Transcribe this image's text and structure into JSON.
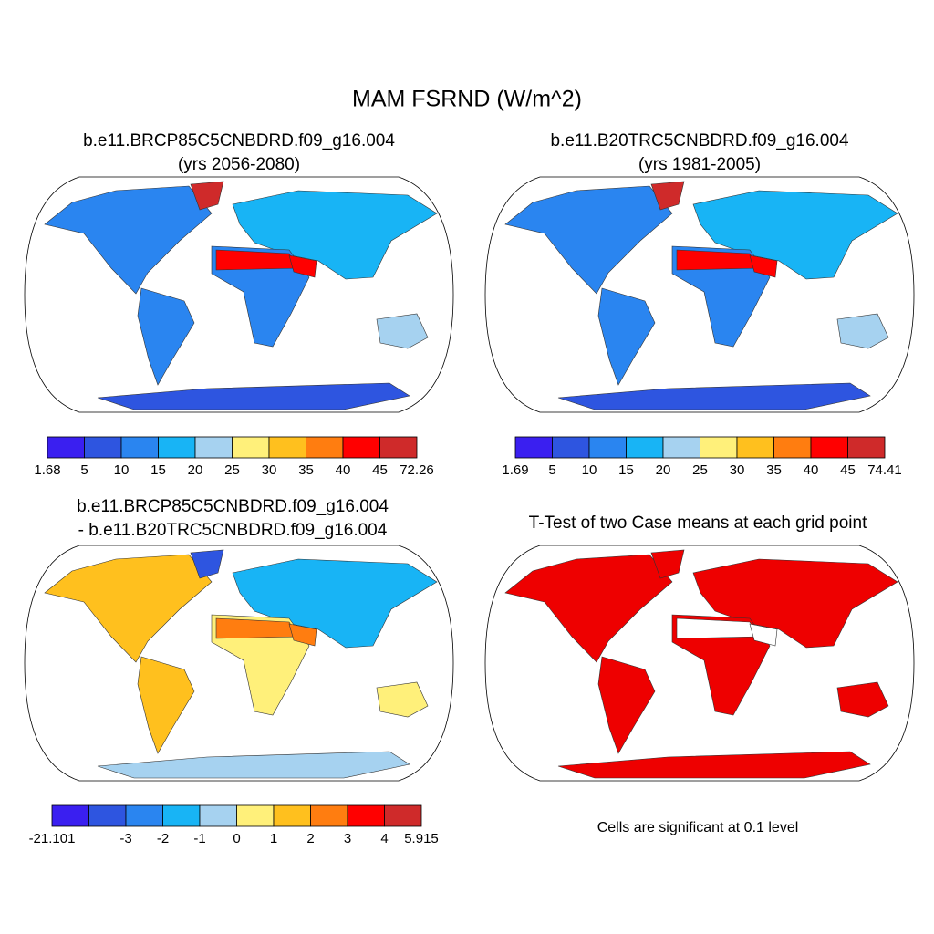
{
  "title": "MAM FSRND (W/m^2)",
  "panels": [
    {
      "title_lines": [
        "b.e11.BRCP85C5CNBDRD.f09_g16.004",
        "(yrs 2056-2080)"
      ],
      "colorbar": {
        "colors": [
          "#3a1ff0",
          "#2e55e0",
          "#2a85f0",
          "#18b4f5",
          "#a6d2f0",
          "#fff07a",
          "#ffc01e",
          "#ff7d10",
          "#ff0000",
          "#cf2a2a"
        ],
        "labels": [
          1.68,
          5,
          10,
          15,
          20,
          25,
          30,
          35,
          40,
          45,
          72.26
        ]
      }
    },
    {
      "title_lines": [
        "b.e11.B20TRC5CNBDRD.f09_g16.004",
        "(yrs 1981-2005)"
      ],
      "colorbar": {
        "colors": [
          "#3a1ff0",
          "#2e55e0",
          "#2a85f0",
          "#18b4f5",
          "#a6d2f0",
          "#fff07a",
          "#ffc01e",
          "#ff7d10",
          "#ff0000",
          "#cf2a2a"
        ],
        "labels": [
          1.69,
          5,
          10,
          15,
          20,
          25,
          30,
          35,
          40,
          45,
          74.41
        ]
      }
    },
    {
      "title_lines": [
        "b.e11.BRCP85C5CNBDRD.f09_g16.004",
        "- b.e11.B20TRC5CNBDRD.f09_g16.004"
      ],
      "colorbar": {
        "colors": [
          "#3a1ff0",
          "#2e55e0",
          "#2a85f0",
          "#18b4f5",
          "#a6d2f0",
          "#fff07a",
          "#ffc01e",
          "#ff7d10",
          "#ff0000",
          "#cf2a2a"
        ],
        "labels": [
          -21.101,
          null,
          -3,
          -2,
          -1,
          0,
          1,
          2,
          3,
          4,
          5.915
        ]
      }
    },
    {
      "title_lines": [
        "T-Test of two Case means at each grid point"
      ]
    }
  ],
  "footnote": "Cells are significant at 0.1 level"
}
